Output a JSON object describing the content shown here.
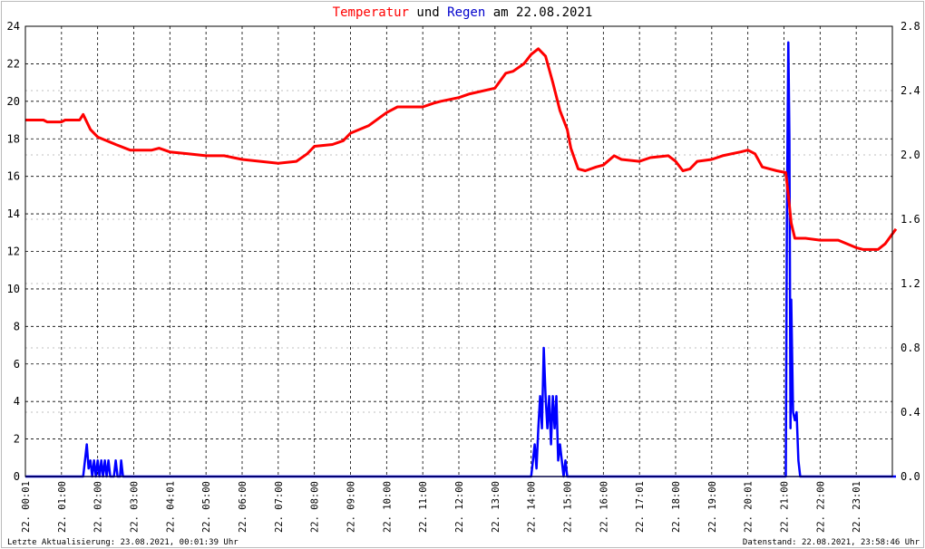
{
  "title": {
    "part1": "Temperatur",
    "part2": "und",
    "part3": "Regen",
    "part4": "am 22.08.2021",
    "color1": "#ff0000",
    "color3": "#0000cc"
  },
  "footer": {
    "left": "Letzte Aktualisierung: 23.08.2021, 00:01:39 Uhr",
    "right": "Datenstand: 22.08.2021, 23:58:46 Uhr"
  },
  "chart_data": {
    "type": "line",
    "grid": true,
    "y_left": {
      "min": 0,
      "max": 24,
      "ticks": [
        "0",
        "2",
        "4",
        "6",
        "8",
        "10",
        "12",
        "14",
        "16",
        "18",
        "20",
        "22",
        "24"
      ]
    },
    "y_right": {
      "min": 0,
      "max": 2.8,
      "ticks": [
        "0.0",
        "0.4",
        "0.8",
        "1.2",
        "1.6",
        "2.0",
        "2.4",
        "2.8"
      ]
    },
    "x_ticks": [
      "22. 00:01",
      "22. 01:00",
      "22. 02:00",
      "22. 03:00",
      "22. 04:01",
      "22. 05:00",
      "22. 06:00",
      "22. 07:00",
      "22. 08:00",
      "22. 09:00",
      "22. 10:00",
      "22. 11:00",
      "22. 12:00",
      "22. 13:00",
      "22. 14:00",
      "22. 15:00",
      "22. 16:00",
      "22. 17:01",
      "22. 18:00",
      "22. 19:00",
      "22. 20:01",
      "22. 21:00",
      "22. 22:00",
      "22. 23:01"
    ],
    "series": [
      {
        "name": "Temperatur",
        "axis": "left",
        "color": "#ff0000",
        "points": [
          [
            0,
            19
          ],
          [
            0.5,
            19
          ],
          [
            0.6,
            18.9
          ],
          [
            1,
            18.9
          ],
          [
            1.1,
            19
          ],
          [
            1.5,
            19
          ],
          [
            1.6,
            19.3
          ],
          [
            1.8,
            18.5
          ],
          [
            2,
            18.1
          ],
          [
            2.5,
            17.7
          ],
          [
            2.9,
            17.4
          ],
          [
            3.5,
            17.4
          ],
          [
            3.7,
            17.5
          ],
          [
            4,
            17.3
          ],
          [
            4.5,
            17.2
          ],
          [
            5,
            17.1
          ],
          [
            5.5,
            17.1
          ],
          [
            6,
            16.9
          ],
          [
            6.5,
            16.8
          ],
          [
            7,
            16.7
          ],
          [
            7.5,
            16.8
          ],
          [
            7.8,
            17.2
          ],
          [
            8,
            17.6
          ],
          [
            8.5,
            17.7
          ],
          [
            8.8,
            17.9
          ],
          [
            9,
            18.3
          ],
          [
            9.5,
            18.7
          ],
          [
            10,
            19.4
          ],
          [
            10.3,
            19.7
          ],
          [
            11,
            19.7
          ],
          [
            11.3,
            19.9
          ],
          [
            11.5,
            20
          ],
          [
            12,
            20.2
          ],
          [
            12.3,
            20.4
          ],
          [
            13,
            20.7
          ],
          [
            13.3,
            21.5
          ],
          [
            13.5,
            21.6
          ],
          [
            13.8,
            22
          ],
          [
            14,
            22.5
          ],
          [
            14.2,
            22.8
          ],
          [
            14.4,
            22.4
          ],
          [
            14.6,
            21
          ],
          [
            14.8,
            19.5
          ],
          [
            15,
            18.5
          ],
          [
            15.1,
            17.5
          ],
          [
            15.3,
            16.4
          ],
          [
            15.5,
            16.3
          ],
          [
            15.8,
            16.5
          ],
          [
            16,
            16.6
          ],
          [
            16.3,
            17.1
          ],
          [
            16.5,
            16.9
          ],
          [
            17,
            16.8
          ],
          [
            17.3,
            17
          ],
          [
            17.8,
            17.1
          ],
          [
            18,
            16.8
          ],
          [
            18.2,
            16.3
          ],
          [
            18.4,
            16.4
          ],
          [
            18.6,
            16.8
          ],
          [
            19,
            16.9
          ],
          [
            19.3,
            17.1
          ],
          [
            19.8,
            17.3
          ],
          [
            20,
            17.4
          ],
          [
            20.2,
            17.2
          ],
          [
            20.4,
            16.5
          ],
          [
            20.8,
            16.3
          ],
          [
            21.05,
            16.2
          ],
          [
            21.12,
            15
          ],
          [
            21.2,
            13.5
          ],
          [
            21.3,
            12.7
          ],
          [
            21.6,
            12.7
          ],
          [
            22,
            12.6
          ],
          [
            22.5,
            12.6
          ],
          [
            23,
            12.2
          ],
          [
            23.2,
            12.1
          ],
          [
            23.6,
            12.1
          ],
          [
            23.8,
            12.4
          ],
          [
            24.1,
            13.2
          ]
        ]
      },
      {
        "name": "Regen",
        "axis": "right",
        "color": "#0000ff",
        "points": [
          [
            0,
            0
          ],
          [
            1.6,
            0
          ],
          [
            1.65,
            0.1
          ],
          [
            1.7,
            0.2
          ],
          [
            1.75,
            0.05
          ],
          [
            1.8,
            0.1
          ],
          [
            1.85,
            0
          ],
          [
            1.9,
            0.1
          ],
          [
            1.95,
            0
          ],
          [
            2,
            0.1
          ],
          [
            2.05,
            0
          ],
          [
            2.1,
            0.1
          ],
          [
            2.15,
            0
          ],
          [
            2.2,
            0.1
          ],
          [
            2.25,
            0
          ],
          [
            2.3,
            0.1
          ],
          [
            2.35,
            0
          ],
          [
            2.45,
            0
          ],
          [
            2.5,
            0.1
          ],
          [
            2.55,
            0
          ],
          [
            2.62,
            0
          ],
          [
            2.65,
            0.1
          ],
          [
            2.7,
            0
          ],
          [
            14,
            0
          ],
          [
            14.05,
            0.1
          ],
          [
            14.1,
            0.2
          ],
          [
            14.15,
            0.05
          ],
          [
            14.2,
            0.3
          ],
          [
            14.25,
            0.5
          ],
          [
            14.3,
            0.3
          ],
          [
            14.35,
            0.8
          ],
          [
            14.4,
            0.5
          ],
          [
            14.45,
            0.3
          ],
          [
            14.5,
            0.5
          ],
          [
            14.55,
            0.2
          ],
          [
            14.6,
            0.5
          ],
          [
            14.65,
            0.3
          ],
          [
            14.7,
            0.5
          ],
          [
            14.75,
            0.1
          ],
          [
            14.8,
            0.2
          ],
          [
            14.85,
            0.1
          ],
          [
            14.9,
            0
          ],
          [
            14.95,
            0.1
          ],
          [
            15,
            0
          ],
          [
            21.05,
            0
          ],
          [
            21.08,
            1.6
          ],
          [
            21.12,
            2.7
          ],
          [
            21.15,
            2.1
          ],
          [
            21.18,
            0.3
          ],
          [
            21.2,
            1.1
          ],
          [
            21.25,
            0.4
          ],
          [
            21.3,
            0.35
          ],
          [
            21.35,
            0.4
          ],
          [
            21.4,
            0.1
          ],
          [
            21.45,
            0
          ],
          [
            24.1,
            0
          ]
        ]
      }
    ]
  }
}
